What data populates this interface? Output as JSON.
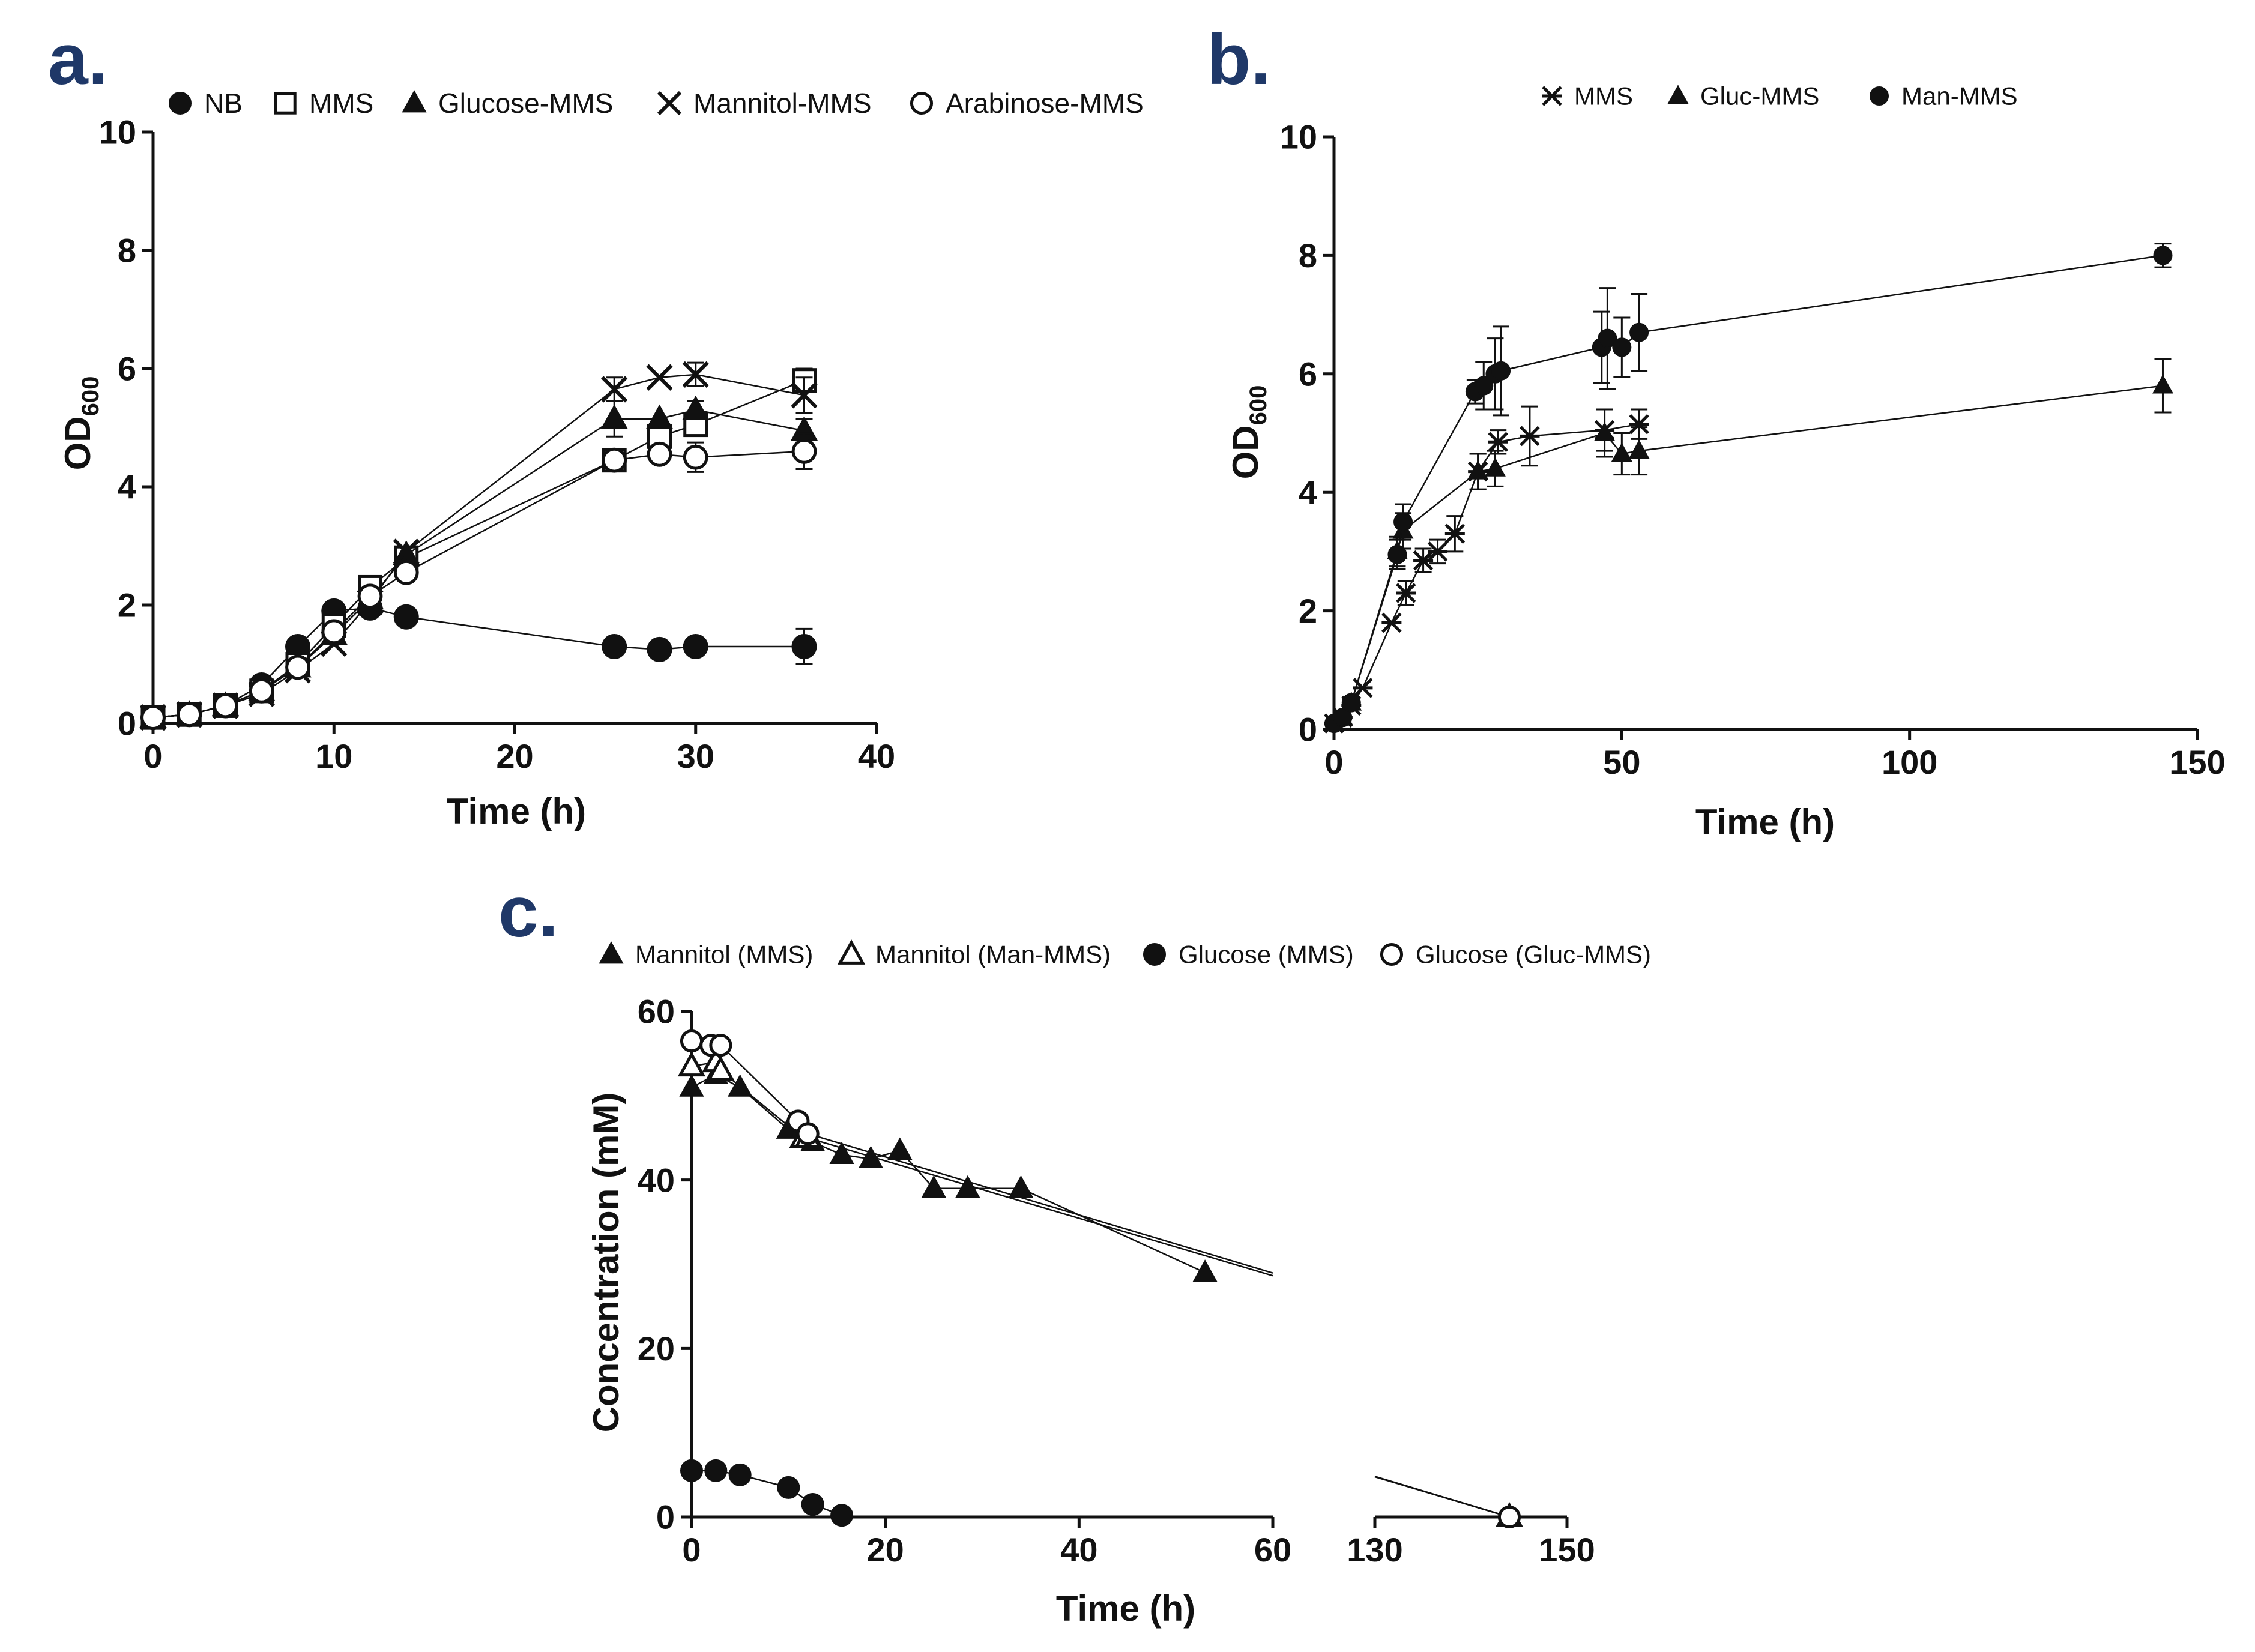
{
  "chart_data": [
    {
      "panel": "a.",
      "type": "line",
      "title": "",
      "xlabel": "Time (h)",
      "ylabel_main": "OD",
      "ylabel_sub": "600",
      "xlim": [
        0,
        40
      ],
      "ylim": [
        0,
        10
      ],
      "xticks": [
        0,
        10,
        20,
        30,
        40
      ],
      "yticks": [
        0,
        2,
        4,
        6,
        8,
        10
      ],
      "legend_position": "top",
      "series": [
        {
          "name": "NB",
          "marker": "circle-filled",
          "x": [
            0,
            2,
            4,
            6,
            8,
            10,
            12,
            14,
            25.5,
            28,
            30,
            36
          ],
          "y": [
            0.1,
            0.15,
            0.3,
            0.65,
            1.3,
            1.9,
            1.95,
            1.8,
            1.3,
            1.25,
            1.3,
            1.3
          ],
          "err": [
            0,
            0,
            0,
            0,
            0,
            0,
            0,
            0,
            0,
            0,
            0,
            0.3
          ]
        },
        {
          "name": "MMS",
          "marker": "square-open",
          "x": [
            0,
            2,
            4,
            6,
            8,
            10,
            12,
            14,
            25.5,
            28,
            30,
            36
          ],
          "y": [
            0.1,
            0.15,
            0.3,
            0.55,
            1.0,
            1.65,
            2.3,
            2.8,
            4.45,
            4.85,
            5.05,
            5.8
          ],
          "err": [
            0,
            0,
            0,
            0,
            0,
            0,
            0,
            0,
            0,
            0,
            0.15,
            0.2
          ]
        },
        {
          "name": "Glucose-MMS",
          "marker": "triangle-filled",
          "x": [
            0,
            2,
            4,
            6,
            8,
            10,
            12,
            14,
            25.5,
            28,
            30,
            36
          ],
          "y": [
            0.1,
            0.15,
            0.3,
            0.55,
            0.95,
            1.5,
            2.1,
            2.85,
            5.15,
            5.15,
            5.3,
            4.95
          ],
          "err": [
            0,
            0,
            0,
            0,
            0,
            0,
            0,
            0,
            0.3,
            0,
            0.15,
            0.2
          ]
        },
        {
          "name": "Mannitol-MMS",
          "marker": "x",
          "x": [
            0,
            2,
            4,
            6,
            8,
            10,
            12,
            14,
            25.5,
            28,
            30,
            36
          ],
          "y": [
            0.1,
            0.15,
            0.3,
            0.5,
            0.9,
            1.35,
            2.05,
            2.9,
            5.65,
            5.85,
            5.9,
            5.55
          ],
          "err": [
            0,
            0,
            0,
            0,
            0,
            0,
            0,
            0,
            0.2,
            0,
            0.2,
            0.3
          ]
        },
        {
          "name": "Arabinose-MMS",
          "marker": "circle-open",
          "x": [
            0,
            2,
            4,
            6,
            8,
            10,
            12,
            14,
            25.5,
            28,
            30,
            36
          ],
          "y": [
            0.1,
            0.15,
            0.3,
            0.55,
            0.95,
            1.55,
            2.15,
            2.55,
            4.45,
            4.55,
            4.5,
            4.6
          ],
          "err": [
            0,
            0,
            0,
            0,
            0,
            0,
            0,
            0,
            0,
            0.1,
            0.25,
            0.3
          ]
        }
      ]
    },
    {
      "panel": "b.",
      "type": "line",
      "title": "",
      "xlabel": "Time (h)",
      "ylabel_main": "OD",
      "ylabel_sub": "600",
      "xlim": [
        0,
        150
      ],
      "ylim": [
        0,
        10
      ],
      "xticks": [
        0,
        50,
        100,
        150
      ],
      "yticks": [
        0,
        2,
        4,
        6,
        8,
        10
      ],
      "legend_position": "top",
      "series": [
        {
          "name": "MMS",
          "marker": "asterisk",
          "x": [
            0,
            1.5,
            3,
            5,
            10,
            12.5,
            15.5,
            18,
            21,
            25,
            28.5,
            34,
            47,
            53
          ],
          "y": [
            0.1,
            0.2,
            0.4,
            0.7,
            1.8,
            2.3,
            2.85,
            3.0,
            3.3,
            4.35,
            4.85,
            4.95,
            5.05,
            5.15
          ],
          "err": [
            0,
            0,
            0,
            0,
            0,
            0.2,
            0.2,
            0.2,
            0.3,
            0.3,
            0.2,
            0.5,
            0.35,
            0.25
          ]
        },
        {
          "name": "Gluc-MMS",
          "marker": "triangle-filled",
          "x": [
            0,
            1.5,
            3,
            11,
            12,
            25,
            28,
            47,
            50,
            53,
            144
          ],
          "y": [
            0.1,
            0.2,
            0.45,
            3.0,
            3.35,
            4.35,
            4.4,
            5.0,
            4.65,
            4.7,
            5.8
          ],
          "err": [
            0,
            0,
            0,
            0.25,
            0.3,
            0.3,
            0.3,
            0.4,
            0.35,
            0.4,
            0.45
          ]
        },
        {
          "name": "Man-MMS",
          "marker": "circle-filled",
          "x": [
            0,
            1.5,
            3,
            11,
            12,
            24.5,
            26,
            28,
            29,
            46.5,
            47.5,
            50,
            53,
            144
          ],
          "y": [
            0.1,
            0.2,
            0.45,
            2.95,
            3.5,
            5.7,
            5.8,
            6.0,
            6.05,
            6.45,
            6.6,
            6.45,
            6.7,
            8.0
          ],
          "err": [
            0,
            0,
            0,
            0.25,
            0.3,
            0.2,
            0.4,
            0.6,
            0.75,
            0.6,
            0.85,
            0.5,
            0.65,
            0.2
          ]
        }
      ]
    },
    {
      "panel": "c.",
      "type": "line",
      "title": "",
      "xlabel": "Time (h)",
      "ylabel": "Concentration (mM)",
      "axis_break": true,
      "xlim_segments": [
        [
          0,
          60
        ],
        [
          130,
          150
        ]
      ],
      "ylim": [
        0,
        60
      ],
      "xticks_seg1": [
        0,
        20,
        40,
        60
      ],
      "xticks_seg2": [
        130,
        150
      ],
      "yticks": [
        0,
        20,
        40,
        60
      ],
      "legend_position": "top",
      "series": [
        {
          "name": "Mannitol (MMS)",
          "marker": "triangle-filled",
          "x": [
            0,
            2.5,
            5,
            10,
            12.5,
            15.5,
            18.5,
            21.5,
            25,
            28.5,
            34,
            53
          ],
          "y": [
            51,
            52.5,
            51,
            46,
            44.5,
            43,
            42.5,
            43.5,
            39,
            39,
            39,
            29
          ]
        },
        {
          "name": "Mannitol (Man-MMS)",
          "marker": "triangle-open",
          "x": [
            0,
            2.5,
            3,
            11.5,
            12,
            144
          ],
          "y": [
            53.5,
            54,
            53,
            45,
            45,
            0
          ]
        },
        {
          "name": "Glucose (MMS)",
          "marker": "circle-filled",
          "x": [
            0,
            2.5,
            5,
            10,
            12.5,
            15.5
          ],
          "y": [
            5.5,
            5.5,
            5,
            3.5,
            1.5,
            0.2
          ]
        },
        {
          "name": "Glucose (Gluc-MMS)",
          "marker": "circle-open",
          "x": [
            0,
            2,
            3,
            11,
            12,
            144
          ],
          "y": [
            56.5,
            56,
            56,
            47,
            45.5,
            0
          ]
        }
      ]
    }
  ]
}
